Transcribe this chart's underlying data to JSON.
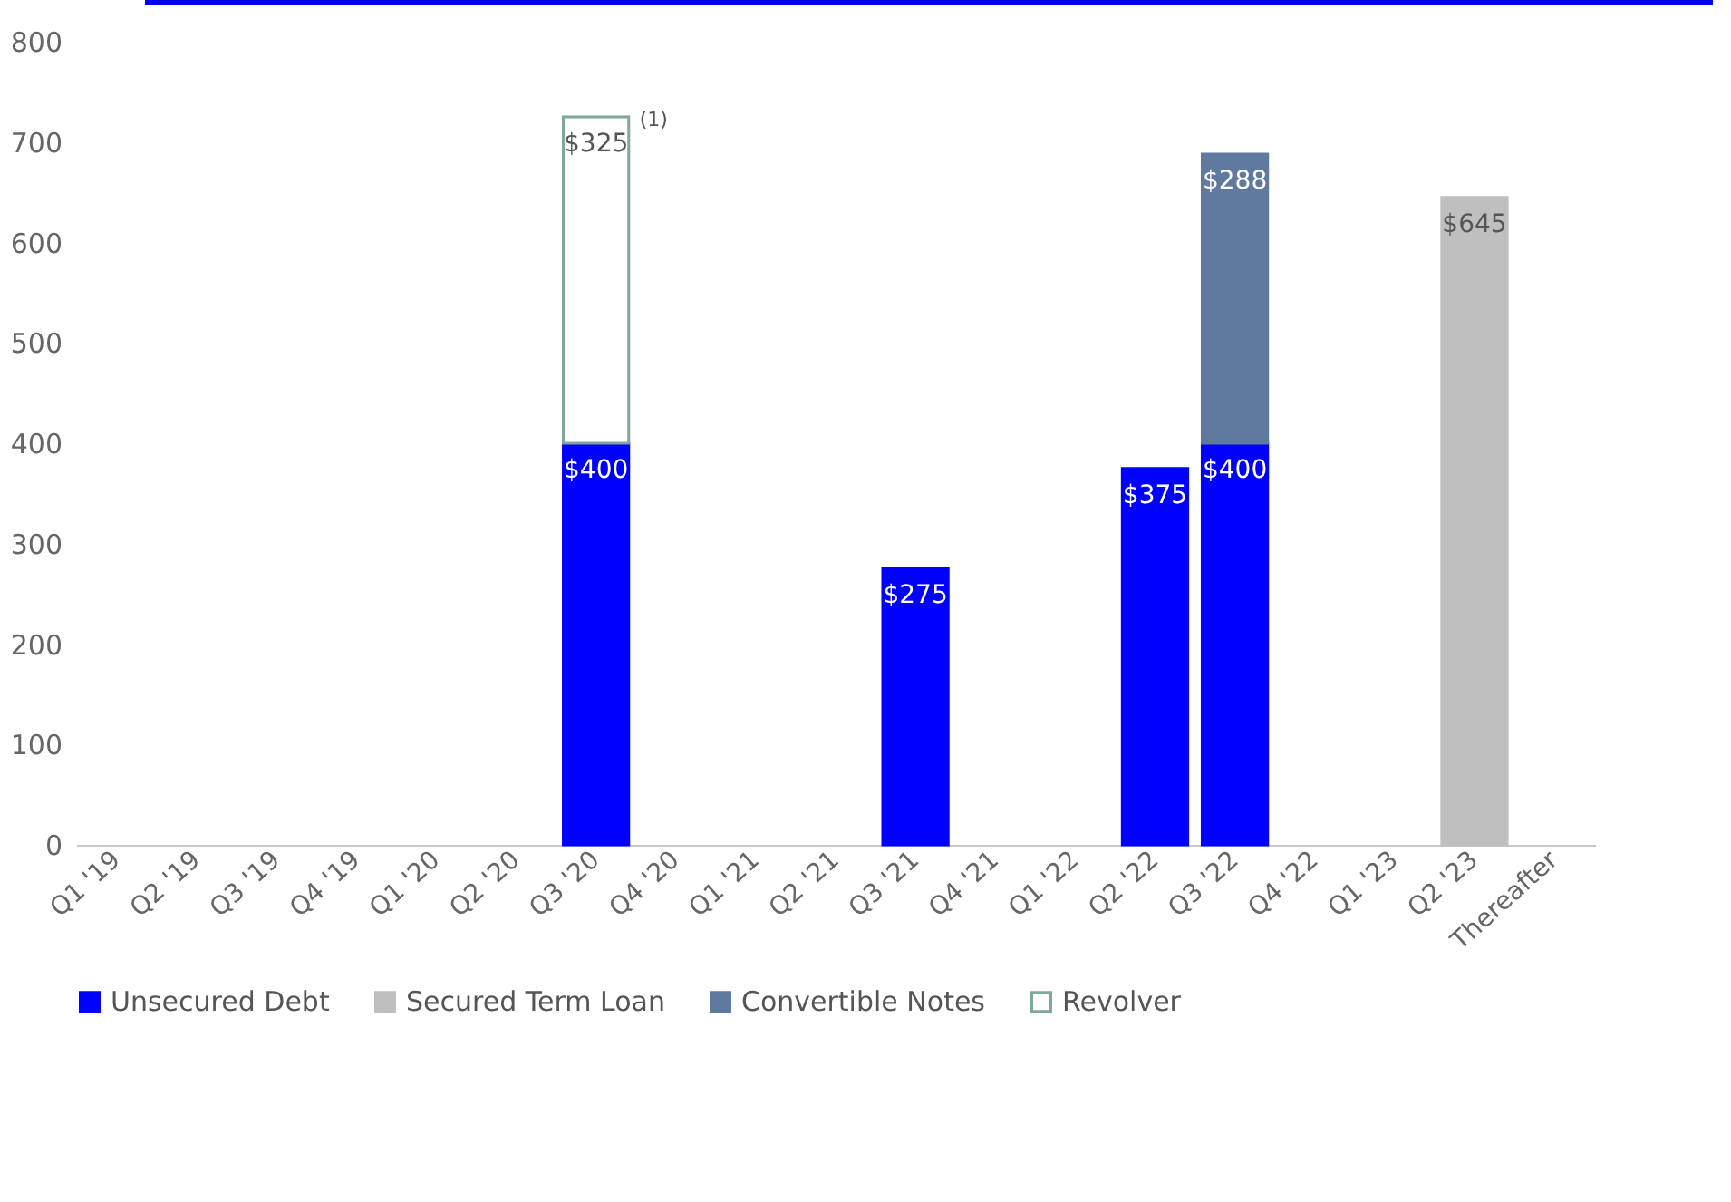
{
  "chart_data": {
    "type": "bar",
    "stacked": true,
    "categories": [
      "Q1 '19",
      "Q2 '19",
      "Q3 '19",
      "Q4 '19",
      "Q1 '20",
      "Q2 '20",
      "Q3 '20",
      "Q4 '20",
      "Q1 '21",
      "Q2 '21",
      "Q3 '21",
      "Q4 '21",
      "Q1 '22",
      "Q2 '22",
      "Q3 '22",
      "Q4 '22",
      "Q1 '23",
      "Q2 '23",
      "Thereafter"
    ],
    "series": [
      {
        "name": "Unsecured Debt",
        "color": "#0000ff",
        "values": [
          null,
          null,
          null,
          null,
          null,
          null,
          400,
          null,
          null,
          null,
          275,
          null,
          null,
          375,
          400,
          null,
          null,
          null,
          null
        ],
        "value_labels": [
          null,
          null,
          null,
          null,
          null,
          null,
          "$400",
          null,
          null,
          null,
          "$275",
          null,
          null,
          "$375",
          "$400",
          null,
          null,
          null,
          null
        ]
      },
      {
        "name": "Secured Term Loan",
        "color": "#bfbfbf",
        "values": [
          null,
          null,
          null,
          null,
          null,
          null,
          null,
          null,
          null,
          null,
          null,
          null,
          null,
          null,
          null,
          null,
          null,
          645,
          null
        ],
        "value_labels": [
          null,
          null,
          null,
          null,
          null,
          null,
          null,
          null,
          null,
          null,
          null,
          null,
          null,
          null,
          null,
          null,
          null,
          "$645",
          null
        ]
      },
      {
        "name": "Convertible Notes",
        "color": "#5f7a9e",
        "values": [
          null,
          null,
          null,
          null,
          null,
          null,
          null,
          null,
          null,
          null,
          null,
          null,
          null,
          null,
          288,
          null,
          null,
          null,
          null
        ],
        "value_labels": [
          null,
          null,
          null,
          null,
          null,
          null,
          null,
          null,
          null,
          null,
          null,
          null,
          null,
          null,
          "$288",
          null,
          null,
          null,
          null
        ]
      },
      {
        "name": "Revolver",
        "color": "#ffffff",
        "values": [
          null,
          null,
          null,
          null,
          null,
          null,
          325,
          null,
          null,
          null,
          null,
          null,
          null,
          null,
          null,
          null,
          null,
          null,
          null
        ],
        "value_labels": [
          null,
          null,
          null,
          null,
          null,
          null,
          "$325",
          null,
          null,
          null,
          null,
          null,
          null,
          null,
          null,
          null,
          null,
          null,
          null
        ]
      }
    ],
    "ylim": [
      0,
      800
    ],
    "yticks": [
      0,
      100,
      200,
      300,
      400,
      500,
      600,
      700,
      800
    ],
    "annotations": [
      {
        "text": "(1)",
        "x": "Q3 '20",
        "y": 725
      }
    ],
    "legend": "bottom",
    "grid": false
  }
}
